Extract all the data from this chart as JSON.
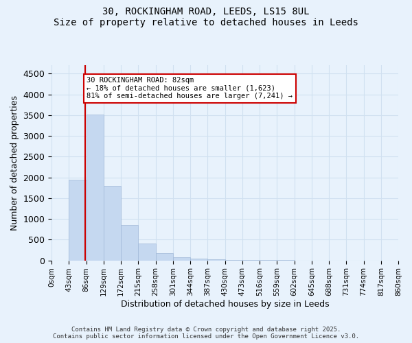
{
  "title_line1": "30, ROCKINGHAM ROAD, LEEDS, LS15 8UL",
  "title_line2": "Size of property relative to detached houses in Leeds",
  "xlabel": "Distribution of detached houses by size in Leeds",
  "ylabel": "Number of detached properties",
  "bin_labels": [
    "0sqm",
    "43sqm",
    "86sqm",
    "129sqm",
    "172sqm",
    "215sqm",
    "258sqm",
    "301sqm",
    "344sqm",
    "387sqm",
    "430sqm",
    "473sqm",
    "516sqm",
    "559sqm",
    "602sqm",
    "645sqm",
    "688sqm",
    "731sqm",
    "774sqm",
    "817sqm",
    "860sqm"
  ],
  "bar_heights": [
    0,
    1950,
    3510,
    1800,
    850,
    400,
    170,
    80,
    40,
    20,
    10,
    5,
    3,
    2,
    1,
    0,
    0,
    0,
    0,
    0
  ],
  "bar_color": "#c5d8f0",
  "bar_edgecolor": "#a0b8d8",
  "grid_color": "#d0e0f0",
  "annotation_text": "30 ROCKINGHAM ROAD: 82sqm\n← 18% of detached houses are smaller (1,623)\n81% of semi-detached houses are larger (7,241) →",
  "annotation_box_color": "#ffffff",
  "annotation_box_edgecolor": "#cc0000",
  "ylim": [
    0,
    4700
  ],
  "yticks": [
    0,
    500,
    1000,
    1500,
    2000,
    2500,
    3000,
    3500,
    4000,
    4500
  ],
  "vline_color": "#cc0000",
  "vline_x": 1.93,
  "footer_line1": "Contains HM Land Registry data © Crown copyright and database right 2025.",
  "footer_line2": "Contains public sector information licensed under the Open Government Licence v3.0.",
  "bg_color": "#e8f2fc",
  "axes_bg_color": "#e8f2fc"
}
